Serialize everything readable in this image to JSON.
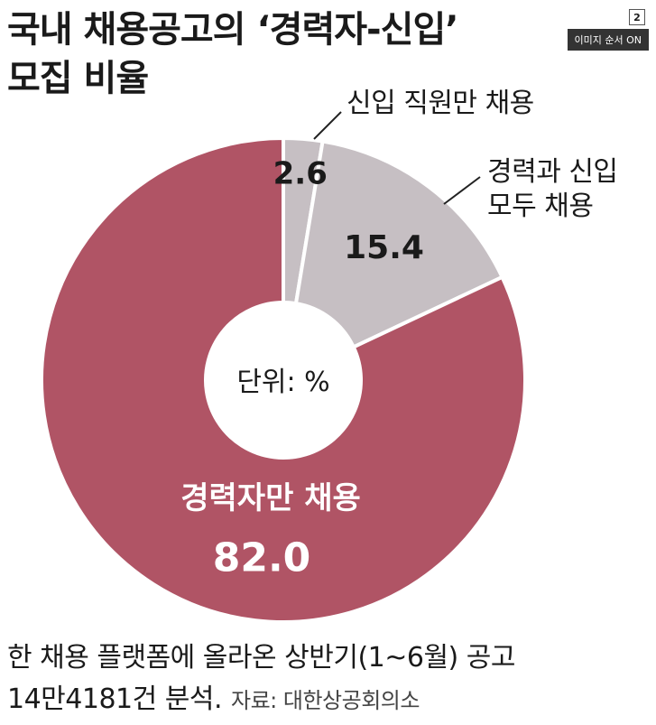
{
  "title": {
    "line1": "국내 채용공고의 ‘경력자-신입’",
    "line2": "모집 비율"
  },
  "badges": {
    "page": "2",
    "image_order": "이미지 순서 ON"
  },
  "chart_data": {
    "type": "pie",
    "donut": true,
    "center_label": "단위: %",
    "slices": [
      {
        "label": "신입 직원만 채용",
        "value": 2.6,
        "value_label": "2.6",
        "color": "#c6bfc3"
      },
      {
        "label": "경력과 신입 모두 채용",
        "value": 15.4,
        "value_label": "15.4",
        "color": "#c6bfc3"
      },
      {
        "label": "경력자만 채용",
        "value": 82.0,
        "value_label": "82.0",
        "color": "#b05465"
      }
    ]
  },
  "labels": {
    "newbie_only": "신입 직원만 채용",
    "both_line1": "경력과 신입",
    "both_line2": "모두 채용",
    "experienced_only": "경력자만 채용"
  },
  "footer": {
    "line1": "한 채용 플랫폼에 올라온 상반기(1~6월) 공고",
    "line2": "14만4181건 분석.",
    "source": "자료: 대한상공회의소"
  }
}
